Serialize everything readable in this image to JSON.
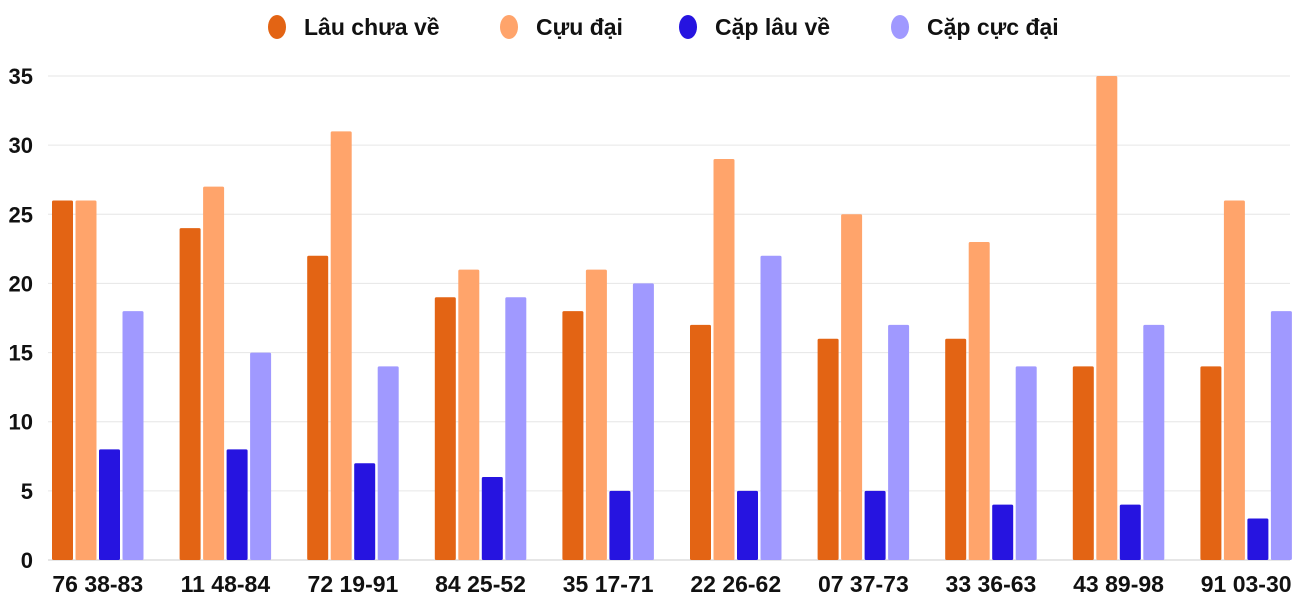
{
  "chart_data": {
    "type": "bar",
    "title": "",
    "xlabel": "",
    "ylabel": "",
    "ylim": [
      0,
      35
    ],
    "yticks": [
      0,
      5,
      10,
      15,
      20,
      25,
      30,
      35
    ],
    "grid": true,
    "legend_position": "top",
    "categories": [
      "76 38-83",
      "11 48-84",
      "72 19-91",
      "84 25-52",
      "35 17-71",
      "22 26-62",
      "07 37-73",
      "33 36-63",
      "43 89-98",
      "91 03-30"
    ],
    "series": [
      {
        "name": "Lâu chưa về",
        "color": "#e36414",
        "values": [
          26,
          24,
          22,
          19,
          18,
          17,
          16,
          16,
          14,
          14
        ]
      },
      {
        "name": "Cựu đại",
        "color": "#ffa46b",
        "values": [
          26,
          27,
          31,
          21,
          21,
          29,
          25,
          23,
          35,
          26
        ]
      },
      {
        "name": "Cặp lâu về",
        "color": "#2614e0",
        "values": [
          8,
          8,
          7,
          6,
          5,
          5,
          5,
          4,
          4,
          3
        ]
      },
      {
        "name": "Cặp cực đại",
        "color": "#a099ff",
        "values": [
          18,
          15,
          14,
          19,
          20,
          22,
          17,
          14,
          17,
          18
        ]
      }
    ]
  }
}
